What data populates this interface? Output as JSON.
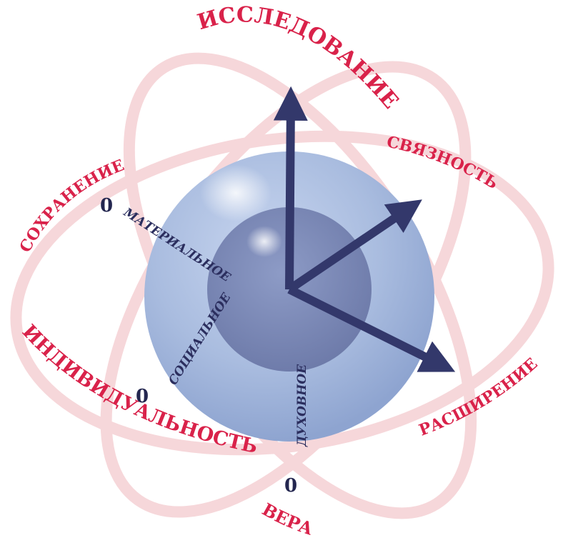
{
  "ring_labels": {
    "research": "ИССЛЕДОВАНИЕ",
    "connectivity": "СВЯЗНОСТЬ",
    "expansion": "РАСШИРЕНИЕ",
    "faith": "ВЕРА",
    "individuality": "ИНДИВИДУАЛЬНОСТЬ",
    "preservation": "СОХРАНЕНИЕ"
  },
  "axis_labels": {
    "material": "МАТЕРИАЛЬНОЕ",
    "social": "СОЦИАЛЬНОЕ",
    "spiritual": "ДУХОВНОЕ"
  },
  "origin_marks": {
    "material_zero": "0",
    "social_zero": "0",
    "spiritual_zero": "0"
  },
  "colors": {
    "ring_text": "#d9224a",
    "ring_band": "#f6d3d6",
    "sphere_outer": "#a9bcdf",
    "sphere_inner": "#7a88b5",
    "arrow": "#33386b",
    "axis_text": "#2b2e5e"
  }
}
